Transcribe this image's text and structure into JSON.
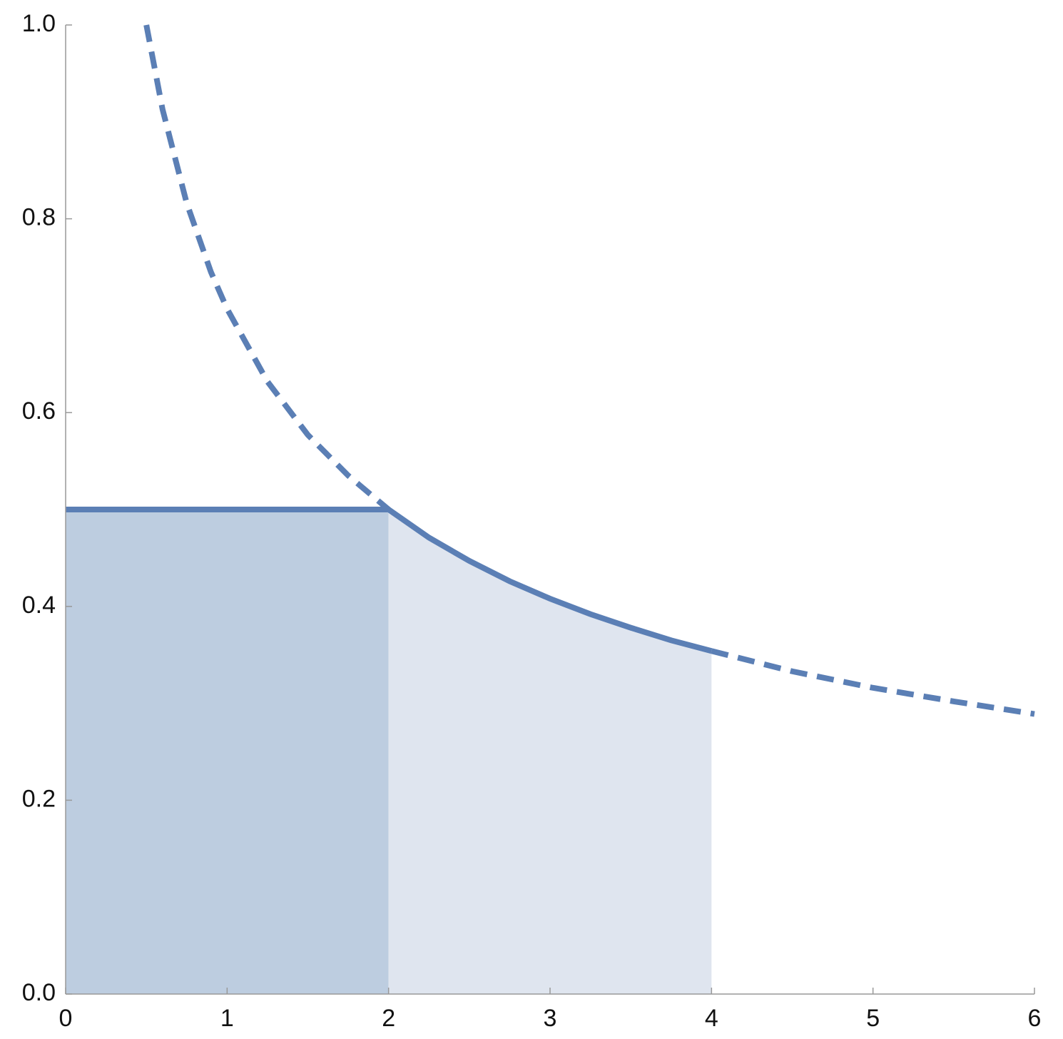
{
  "chart_data": {
    "type": "line",
    "xlim": [
      0,
      6
    ],
    "ylim": [
      0,
      1
    ],
    "xticks": [
      0,
      1,
      2,
      3,
      4,
      5,
      6
    ],
    "yticks": [
      {
        "value": 0,
        "label": "0.0"
      },
      {
        "value": 0.2,
        "label": "0.2"
      },
      {
        "value": 0.4,
        "label": "0.4"
      },
      {
        "value": 0.6,
        "label": "0.6"
      },
      {
        "value": 0.8,
        "label": "0.8"
      },
      {
        "value": 1,
        "label": "1.0"
      }
    ],
    "series": [
      {
        "style": "area",
        "color": "#bdcde0",
        "x": [
          0,
          2
        ],
        "values": [
          0.5,
          0.5
        ]
      },
      {
        "style": "area",
        "color": "#dfe5ef",
        "x": [
          2,
          2.25,
          2.5,
          2.75,
          3,
          3.25,
          3.5,
          3.75,
          4
        ],
        "values": [
          0.5,
          0.471,
          0.447,
          0.426,
          0.408,
          0.392,
          0.378,
          0.365,
          0.354
        ]
      },
      {
        "style": "dashed",
        "color": "#5b7fb5",
        "x": [
          0.5,
          0.6,
          0.75,
          0.9,
          1,
          1.25,
          1.5,
          1.75,
          2,
          3,
          4,
          4.5,
          5,
          5.5,
          6
        ],
        "values": [
          1,
          0.913,
          0.816,
          0.745,
          0.707,
          0.632,
          0.577,
          0.535,
          0.5,
          null,
          0.354,
          0.333,
          0.316,
          0.302,
          0.289
        ]
      },
      {
        "style": "solid",
        "color": "#5b7fb5",
        "x": [
          0,
          2,
          2.25,
          2.5,
          2.75,
          3,
          3.25,
          3.5,
          3.75,
          4
        ],
        "values": [
          0.5,
          0.5,
          0.471,
          0.447,
          0.426,
          0.408,
          0.392,
          0.378,
          0.365,
          0.354
        ]
      }
    ]
  }
}
